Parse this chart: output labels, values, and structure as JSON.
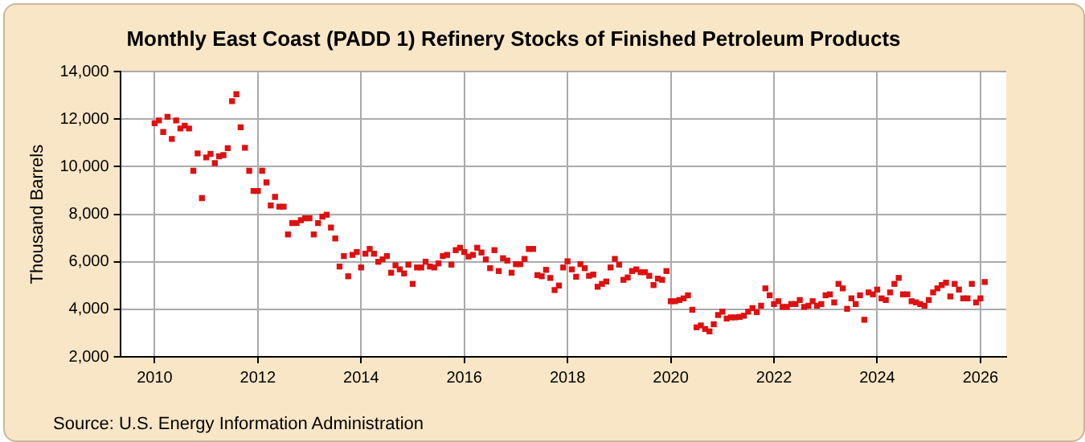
{
  "chart_data": {
    "type": "scatter",
    "title": "Monthly East Coast (PADD 1) Refinery Stocks of Finished Petroleum Products",
    "ylabel": "Thousand Barrels",
    "annotations": [
      "Source: U.S. Energy Information Administration"
    ],
    "xlim": [
      "2009-05",
      "2026-07"
    ],
    "xticks": [
      "2010",
      "2012",
      "2014",
      "2016",
      "2018",
      "2020",
      "2022",
      "2024",
      "2026"
    ],
    "ylim": [
      2000,
      14000
    ],
    "yticks": [
      {
        "value": 2000,
        "label": "2,000"
      },
      {
        "value": 4000,
        "label": "4,000"
      },
      {
        "value": 6000,
        "label": "6,000"
      },
      {
        "value": 8000,
        "label": "8,000"
      },
      {
        "value": 10000,
        "label": "10,000"
      },
      {
        "value": 12000,
        "label": "12,000"
      },
      {
        "value": 14000,
        "label": "14,000"
      }
    ],
    "grid": true,
    "legend": false,
    "marker": "square",
    "series": [
      {
        "color": "#dd1111",
        "x": [
          "2010-01",
          "2010-02",
          "2010-03",
          "2010-04",
          "2010-05",
          "2010-06",
          "2010-07",
          "2010-08",
          "2010-09",
          "2010-10",
          "2010-11",
          "2010-12",
          "2011-01",
          "2011-02",
          "2011-03",
          "2011-04",
          "2011-05",
          "2011-06",
          "2011-07",
          "2011-08",
          "2011-09",
          "2011-10",
          "2011-11",
          "2011-12",
          "2012-01",
          "2012-02",
          "2012-03",
          "2012-04",
          "2012-05",
          "2012-06",
          "2012-07",
          "2012-08",
          "2012-09",
          "2012-10",
          "2012-11",
          "2012-12",
          "2013-01",
          "2013-02",
          "2013-03",
          "2013-04",
          "2013-05",
          "2013-06",
          "2013-07",
          "2013-08",
          "2013-09",
          "2013-10",
          "2013-11",
          "2013-12",
          "2014-01",
          "2014-02",
          "2014-03",
          "2014-04",
          "2014-05",
          "2014-06",
          "2014-07",
          "2014-08",
          "2014-09",
          "2014-10",
          "2014-11",
          "2014-12",
          "2015-01",
          "2015-02",
          "2015-03",
          "2015-04",
          "2015-05",
          "2015-06",
          "2015-07",
          "2015-08",
          "2015-09",
          "2015-10",
          "2015-11",
          "2015-12",
          "2016-01",
          "2016-02",
          "2016-03",
          "2016-04",
          "2016-05",
          "2016-06",
          "2016-07",
          "2016-08",
          "2016-09",
          "2016-10",
          "2016-11",
          "2016-12",
          "2017-01",
          "2017-02",
          "2017-03",
          "2017-04",
          "2017-05",
          "2017-06",
          "2017-07",
          "2017-08",
          "2017-09",
          "2017-10",
          "2017-11",
          "2017-12",
          "2018-01",
          "2018-02",
          "2018-03",
          "2018-04",
          "2018-05",
          "2018-06",
          "2018-07",
          "2018-08",
          "2018-09",
          "2018-10",
          "2018-11",
          "2018-12",
          "2019-01",
          "2019-02",
          "2019-03",
          "2019-04",
          "2019-05",
          "2019-06",
          "2019-07",
          "2019-08",
          "2019-09",
          "2019-10",
          "2019-11",
          "2019-12",
          "2020-01",
          "2020-02",
          "2020-03",
          "2020-04",
          "2020-05",
          "2020-06",
          "2020-07",
          "2020-08",
          "2020-09",
          "2020-10",
          "2020-11",
          "2020-12",
          "2021-01",
          "2021-02",
          "2021-03",
          "2021-04",
          "2021-05",
          "2021-06",
          "2021-07",
          "2021-08",
          "2021-09",
          "2021-10",
          "2021-11",
          "2021-12",
          "2022-01",
          "2022-02",
          "2022-03",
          "2022-04",
          "2022-05",
          "2022-06",
          "2022-07",
          "2022-08",
          "2022-09",
          "2022-10",
          "2022-11",
          "2022-12",
          "2023-01",
          "2023-02",
          "2023-03",
          "2023-04",
          "2023-05",
          "2023-06",
          "2023-07",
          "2023-08",
          "2023-09",
          "2023-10",
          "2023-11",
          "2023-12",
          "2024-01",
          "2024-02",
          "2024-03",
          "2024-04",
          "2024-05",
          "2024-06",
          "2024-07",
          "2024-08",
          "2024-09",
          "2024-10",
          "2024-11",
          "2024-12",
          "2025-01",
          "2025-02",
          "2025-03",
          "2025-04",
          "2025-05",
          "2025-06",
          "2025-07",
          "2025-08",
          "2025-09",
          "2025-10",
          "2025-11",
          "2025-12",
          "2026-01",
          "2026-02"
        ],
        "values": [
          11830,
          11950,
          11460,
          12100,
          11170,
          11950,
          11610,
          11730,
          11610,
          9830,
          10560,
          8680,
          10390,
          10540,
          10150,
          10440,
          10490,
          10780,
          12760,
          13050,
          11660,
          10800,
          9830,
          8980,
          8980,
          9830,
          9340,
          8370,
          8730,
          8320,
          8320,
          7150,
          7630,
          7630,
          7750,
          7830,
          7830,
          7150,
          7630,
          7900,
          7980,
          7440,
          6980,
          5800,
          6240,
          5390,
          6290,
          6410,
          5760,
          6340,
          6540,
          6340,
          6000,
          6100,
          6240,
          5540,
          5850,
          5680,
          5510,
          5880,
          5070,
          5760,
          5760,
          6000,
          5800,
          5760,
          5930,
          6240,
          6290,
          5880,
          6490,
          6590,
          6410,
          6220,
          6290,
          6590,
          6390,
          6100,
          5730,
          6490,
          5610,
          6150,
          6050,
          5540,
          5900,
          5900,
          6120,
          6540,
          6540,
          5440,
          5390,
          5660,
          5320,
          4810,
          5000,
          5760,
          6020,
          5680,
          5370,
          5900,
          5730,
          5410,
          5460,
          4950,
          5070,
          5170,
          5760,
          6120,
          5880,
          5240,
          5340,
          5610,
          5680,
          5560,
          5560,
          5410,
          5020,
          5290,
          5240,
          5610,
          4340,
          4340,
          4390,
          4460,
          4590,
          3980,
          3240,
          3320,
          3170,
          3070,
          3370,
          3760,
          3900,
          3610,
          3660,
          3660,
          3680,
          3730,
          3900,
          4050,
          3880,
          4150,
          4880,
          4590,
          4220,
          4340,
          4100,
          4100,
          4220,
          4220,
          4390,
          4100,
          4150,
          4340,
          4150,
          4220,
          4590,
          4630,
          4290,
          5070,
          4880,
          4020,
          4460,
          4220,
          4590,
          3560,
          4710,
          4630,
          4830,
          4460,
          4390,
          4710,
          5070,
          5320,
          4630,
          4630,
          4340,
          4290,
          4220,
          4150,
          4390,
          4710,
          4880,
          5020,
          5120,
          4540,
          5070,
          4830,
          4460,
          4460,
          5070,
          4290,
          4460,
          5150
        ]
      }
    ]
  }
}
